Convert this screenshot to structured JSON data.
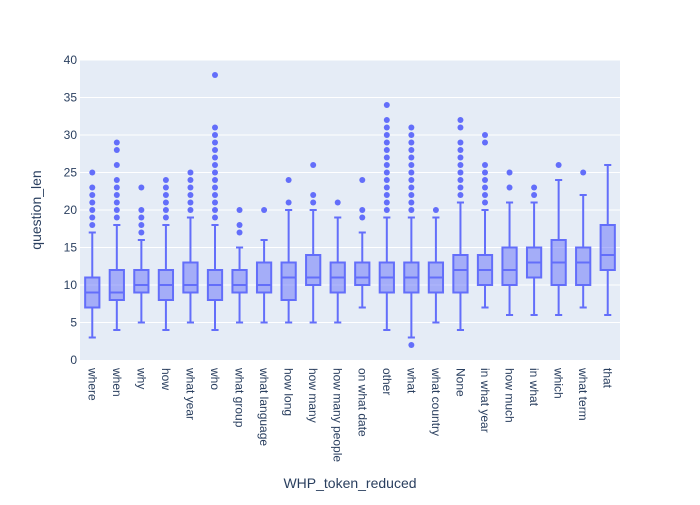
{
  "chart_data": {
    "type": "box",
    "title": "",
    "xlabel": "WHP_token_reduced",
    "ylabel": "question_len",
    "ylim": [
      0,
      40
    ],
    "yticks": [
      0,
      5,
      10,
      15,
      20,
      25,
      30,
      35,
      40
    ],
    "grid": true,
    "legend": "none",
    "colors": {
      "box": "#636efa",
      "plot_bg": "#e5ecf6",
      "grid": "#ffffff",
      "text": "#2a3f5f"
    },
    "categories": [
      "where",
      "when",
      "why",
      "how",
      "what year",
      "who",
      "what group",
      "what language",
      "how long",
      "how many",
      "how many people",
      "on what date",
      "other",
      "what",
      "what country",
      "None",
      "in what year",
      "how much",
      "in what",
      "which",
      "what term",
      "that"
    ],
    "boxes": [
      {
        "category": "where",
        "lowerfence": 3,
        "q1": 7,
        "median": 9,
        "q3": 11,
        "upperfence": 17,
        "outliers": [
          18,
          19,
          20,
          21,
          22,
          23,
          25
        ]
      },
      {
        "category": "when",
        "lowerfence": 4,
        "q1": 8,
        "median": 9,
        "q3": 12,
        "upperfence": 18,
        "outliers": [
          19,
          20,
          21,
          22,
          23,
          24,
          26,
          28,
          29
        ]
      },
      {
        "category": "why",
        "lowerfence": 5,
        "q1": 9,
        "median": 10,
        "q3": 12,
        "upperfence": 16,
        "outliers": [
          17,
          18,
          19,
          20,
          23
        ]
      },
      {
        "category": "how",
        "lowerfence": 4,
        "q1": 8,
        "median": 10,
        "q3": 12,
        "upperfence": 18,
        "outliers": [
          19,
          20,
          21,
          22,
          23,
          24
        ]
      },
      {
        "category": "what year",
        "lowerfence": 5,
        "q1": 9,
        "median": 10,
        "q3": 13,
        "upperfence": 19,
        "outliers": [
          20,
          21,
          22,
          23,
          24,
          25
        ]
      },
      {
        "category": "who",
        "lowerfence": 4,
        "q1": 8,
        "median": 10,
        "q3": 12,
        "upperfence": 18,
        "outliers": [
          19,
          20,
          21,
          22,
          23,
          24,
          25,
          26,
          27,
          28,
          29,
          30,
          31,
          38
        ]
      },
      {
        "category": "what group",
        "lowerfence": 5,
        "q1": 9,
        "median": 10,
        "q3": 12,
        "upperfence": 15,
        "outliers": [
          17,
          18,
          20
        ]
      },
      {
        "category": "what language",
        "lowerfence": 5,
        "q1": 9,
        "median": 10,
        "q3": 13,
        "upperfence": 16,
        "outliers": [
          20
        ]
      },
      {
        "category": "how long",
        "lowerfence": 5,
        "q1": 8,
        "median": 11,
        "q3": 13,
        "upperfence": 20,
        "outliers": [
          21,
          24
        ]
      },
      {
        "category": "how many",
        "lowerfence": 5,
        "q1": 10,
        "median": 11,
        "q3": 14,
        "upperfence": 20,
        "outliers": [
          21,
          22,
          26
        ]
      },
      {
        "category": "how many people",
        "lowerfence": 5,
        "q1": 9,
        "median": 11,
        "q3": 13,
        "upperfence": 19,
        "outliers": [
          21
        ]
      },
      {
        "category": "on what date",
        "lowerfence": 7,
        "q1": 10,
        "median": 11,
        "q3": 13,
        "upperfence": 17,
        "outliers": [
          19,
          20,
          24
        ]
      },
      {
        "category": "other",
        "lowerfence": 4,
        "q1": 9,
        "median": 11,
        "q3": 13,
        "upperfence": 19,
        "outliers": [
          20,
          21,
          22,
          23,
          24,
          25,
          26,
          27,
          28,
          29,
          30,
          31,
          32,
          34
        ]
      },
      {
        "category": "what",
        "lowerfence": 3,
        "q1": 9,
        "median": 11,
        "q3": 13,
        "upperfence": 19,
        "outliers": [
          2,
          20,
          21,
          22,
          23,
          24,
          25,
          26,
          27,
          28,
          29,
          30,
          31
        ]
      },
      {
        "category": "what country",
        "lowerfence": 5,
        "q1": 9,
        "median": 11,
        "q3": 13,
        "upperfence": 19,
        "outliers": [
          20
        ]
      },
      {
        "category": "None",
        "lowerfence": 4,
        "q1": 9,
        "median": 12,
        "q3": 14,
        "upperfence": 21,
        "outliers": [
          22,
          23,
          24,
          25,
          26,
          27,
          28,
          29,
          31,
          32
        ]
      },
      {
        "category": "in what year",
        "lowerfence": 7,
        "q1": 10,
        "median": 12,
        "q3": 14,
        "upperfence": 20,
        "outliers": [
          21,
          22,
          23,
          24,
          25,
          26,
          29,
          30
        ]
      },
      {
        "category": "how much",
        "lowerfence": 6,
        "q1": 10,
        "median": 12,
        "q3": 15,
        "upperfence": 21,
        "outliers": [
          23,
          25
        ]
      },
      {
        "category": "in what",
        "lowerfence": 6,
        "q1": 11,
        "median": 13,
        "q3": 15,
        "upperfence": 21,
        "outliers": [
          22,
          23
        ]
      },
      {
        "category": "which",
        "lowerfence": 6,
        "q1": 10,
        "median": 13,
        "q3": 16,
        "upperfence": 24,
        "outliers": [
          26
        ]
      },
      {
        "category": "what term",
        "lowerfence": 7,
        "q1": 10,
        "median": 13,
        "q3": 15,
        "upperfence": 22,
        "outliers": [
          25
        ]
      },
      {
        "category": "that",
        "lowerfence": 6,
        "q1": 12,
        "median": 14,
        "q3": 18,
        "upperfence": 26,
        "outliers": []
      }
    ]
  }
}
